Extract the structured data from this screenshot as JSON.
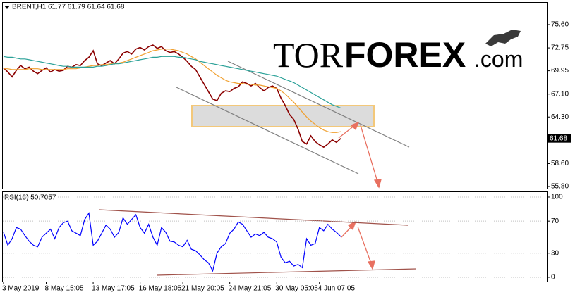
{
  "chart_data": [
    {
      "type": "line",
      "title": "BRENT,H1",
      "subtitle": "61.77 61.79 61.64 61.68",
      "ylim": [
        55.54,
        78.18
      ],
      "yticks": [
        {
          "value": 75.6,
          "label": "75.60"
        },
        72.75,
        69.95,
        {
          "value": 67.1,
          "label": "67.10"
        },
        {
          "value": 64.3,
          "label": "64.30"
        },
        {
          "value": 58.6,
          "label": "58.60"
        },
        {
          "value": 55.8,
          "label": "55.80"
        }
      ],
      "last_price": 61.68,
      "series": [
        {
          "color": "#8b0000",
          "values": [
            70.3,
            69.8,
            69.2,
            70.0,
            70.6,
            70.2,
            70.4,
            69.9,
            69.6,
            70.0,
            70.3,
            69.8,
            70.1,
            69.9,
            70.0,
            70.5,
            70.4,
            70.7,
            70.6,
            71.2,
            71.6,
            72.4,
            70.8,
            70.6,
            70.9,
            71.2,
            70.8,
            71.4,
            72.1,
            72.3,
            72.0,
            72.6,
            72.8,
            72.5,
            72.9,
            73.1,
            72.7,
            72.9,
            72.4,
            72.2,
            72.3,
            72.0,
            71.6,
            71.1,
            70.5,
            70.1,
            69.2,
            68.3,
            67.4,
            66.5,
            66.3,
            67.2,
            67.5,
            67.4,
            67.8,
            68.0,
            68.6,
            68.4,
            68.1,
            68.4,
            67.9,
            67.5,
            67.9,
            68.1,
            67.8,
            66.6,
            65.7,
            64.6,
            64.0,
            62.8,
            61.3,
            61.0,
            62.0,
            61.3,
            60.9,
            60.6,
            61.0,
            61.5,
            61.2,
            61.68
          ]
        },
        {
          "color": "#f0a030",
          "values": [
            70.2,
            70.2,
            70.1,
            70.1,
            70.1,
            70.1,
            70.2,
            70.2,
            70.2,
            70.1,
            70.1,
            70.1,
            70.1,
            70.1,
            70.1,
            70.2,
            70.2,
            70.2,
            70.3,
            70.4,
            70.5,
            70.6,
            70.6,
            70.7,
            70.7,
            70.8,
            70.8,
            70.9,
            71.0,
            71.2,
            71.4,
            71.6,
            71.8,
            72.0,
            72.2,
            72.4,
            72.5,
            72.6,
            72.6,
            72.6,
            72.5,
            72.4,
            72.2,
            72.0,
            71.7,
            71.4,
            71.0,
            70.6,
            70.2,
            69.8,
            69.4,
            69.1,
            68.8,
            68.6,
            68.5,
            68.4,
            68.4,
            68.3,
            68.3,
            68.2,
            68.2,
            68.1,
            68.0,
            67.9,
            67.8,
            67.5,
            67.1,
            66.6,
            66.1,
            65.5,
            64.9,
            64.3,
            63.8,
            63.4,
            63.0,
            62.7,
            62.5,
            62.4,
            62.4,
            62.5
          ]
        },
        {
          "color": "#2aa198",
          "values": [
            71.7,
            71.6,
            71.6,
            71.5,
            71.4,
            71.4,
            71.3,
            71.2,
            71.1,
            71.0,
            70.9,
            70.8,
            70.7,
            70.6,
            70.5,
            70.5,
            70.4,
            70.4,
            70.4,
            70.4,
            70.4,
            70.4,
            70.5,
            70.5,
            70.6,
            70.7,
            70.8,
            70.8,
            70.9,
            71.0,
            71.1,
            71.2,
            71.3,
            71.4,
            71.5,
            71.6,
            71.6,
            71.7,
            71.7,
            71.7,
            71.7,
            71.6,
            71.6,
            71.5,
            71.4,
            71.3,
            71.1,
            71.0,
            70.9,
            70.8,
            70.7,
            70.6,
            70.5,
            70.4,
            70.3,
            70.2,
            70.1,
            70.0,
            69.9,
            69.8,
            69.7,
            69.6,
            69.5,
            69.4,
            69.3,
            69.1,
            68.9,
            68.7,
            68.5,
            68.2,
            67.9,
            67.6,
            67.3,
            67.0,
            66.7,
            66.4,
            66.1,
            65.8,
            65.6,
            65.4
          ]
        }
      ]
    },
    {
      "type": "line",
      "title": "RSI(13) 50.7057",
      "ylim": [
        -5.3,
        107
      ],
      "yticks": [
        100,
        70,
        30,
        0
      ],
      "grid": true,
      "categories": [
        "3 May 2019",
        null,
        null,
        null,
        null,
        null,
        null,
        null,
        null,
        null,
        "8 May 15:05",
        null,
        null,
        null,
        null,
        null,
        null,
        null,
        null,
        null,
        null,
        "13 May 17:05",
        null,
        null,
        null,
        null,
        null,
        null,
        null,
        null,
        null,
        null,
        "16 May 18:05",
        null,
        null,
        null,
        null,
        null,
        null,
        null,
        null,
        null,
        "21 May 20:05",
        null,
        null,
        null,
        null,
        null,
        null,
        null,
        null,
        null,
        null,
        "24 May 21:05",
        null,
        null,
        null,
        null,
        null,
        null,
        null,
        null,
        null,
        null,
        "30 May 05:05",
        null,
        null,
        null,
        null,
        null,
        null,
        null,
        null,
        null,
        "4 Jun 07:05",
        null,
        null,
        null,
        null,
        null
      ],
      "series": [
        {
          "color": "#0000ff",
          "values": [
            56,
            40,
            48,
            62,
            60,
            52,
            45,
            40,
            38,
            50,
            55,
            60,
            48,
            62,
            68,
            70,
            58,
            55,
            52,
            72,
            80,
            40,
            45,
            55,
            65,
            60,
            50,
            56,
            74,
            66,
            72,
            78,
            62,
            55,
            66,
            50,
            40,
            62,
            56,
            45,
            44,
            40,
            38,
            46,
            35,
            33,
            28,
            22,
            18,
            8,
            30,
            38,
            42,
            55,
            60,
            69,
            66,
            58,
            50,
            54,
            52,
            56,
            50,
            48,
            44,
            25,
            18,
            20,
            14,
            16,
            12,
            48,
            40,
            42,
            62,
            58,
            66,
            60,
            56,
            50.7057
          ]
        }
      ]
    }
  ],
  "watermark": {
    "part1": "TOR",
    "part2": "FOREX",
    "part3": ".com"
  }
}
